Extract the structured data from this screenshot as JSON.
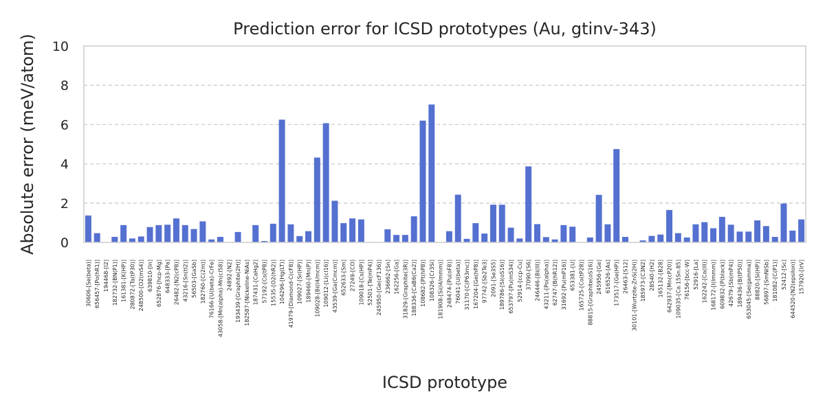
{
  "chart_data": {
    "type": "bar",
    "title": "Prediction error for ICSD prototypes (Au, gtinv-343)",
    "xlabel": "ICSD prototype",
    "ylabel": "Absolute error (meV/atom)",
    "ylim": [
      0,
      10
    ],
    "yticks": [
      0,
      2,
      4,
      6,
      8,
      10
    ],
    "grid": "y-dashed",
    "bar_color": "#5470d0",
    "categories": [
      "30606-[Se(beta)]",
      "656457-[Po(hR1)]",
      "194468-[I2]",
      "182732-[BN(P1)]",
      "161381-[K(HP)]",
      "280872-[Ta(tP30)]",
      "248500-[O2(mS4)]",
      "639810-[In]",
      "652876-[hcp-Mg]",
      "648333-[Pa]",
      "26482-[N2(cP8)]",
      "43216-[Sn(tI2)]",
      "56503-[GaSb]",
      "182760-[C(2m)]",
      "76166-[U(beta)-CrFe]",
      "43058-[Mn(alpha)-Mn(cI58)]",
      "24892-[N2]",
      "193439-[Graphite(2H)]",
      "182587-[Nickeline-NiAs]",
      "187431-[CaHg2]",
      "57192-[Cs(tP8)]",
      "15535-[O2(hR2)]",
      "104296-[Hg(LT)]",
      "41979-[Diamond-C(cF8)]",
      "109027-[Sr(HP)]",
      "189460-[Mn(P)]",
      "109028-[Bi(I4/mcm)]",
      "109012-[Li(cI16)]",
      "43539-[Ga(Cmcm)]",
      "652633-[Sm]",
      "27249-[CO]",
      "109018-[Cs(HP)]",
      "52501-[Te(mP4)]",
      "245950-[Ge(cF136)]",
      "236662-[Sn]",
      "162256-[Ga]",
      "31829-[Graphite(3R)]",
      "188336-[CaB6(Ca2)]",
      "108682-[Pt(hP8)]",
      "108326-[Cr3Si]",
      "181908-[Si(I4/mmm)]",
      "248474-[Pu(oF8)]",
      "76041-[U(beta)]",
      "31170-[C(P63mc)]",
      "167204-[Ge(hP8)]",
      "97742-[Sb2Te3]",
      "2091-[Se3S5]",
      "189786-[Si(oS16)]",
      "653797-[Pu(mS34)]",
      "52914-[ccp-Cu]",
      "37090-[S6]",
      "246446-[Bi(III)]",
      "43211-[Po(alpha)]",
      "62747-[B(hR12)]",
      "31692-[Pu(mP16)]",
      "653381-[U]",
      "165725-[Co(tP28)]",
      "88815-[Graphite(oS16)]",
      "245956-[Ge]",
      "616526-[As]",
      "173517-[Ge(HP)]",
      "26463-[S12]",
      "30101-[Wurtzite-ZnS(2H)]",
      "185973-[C3N2]",
      "28540-[H2]",
      "165132-[B28]",
      "642937-[Mn(cP20)]",
      "109035-[Ca.15Sn.85]",
      "76156-[bcc-W]",
      "52916-[La]",
      "162242-[Ca(III)]",
      "168172-[I(Immm)]",
      "609832-[P(black)]",
      "42679-[Sb(mP4)]",
      "189436-[B(tP50)]",
      "653045-[Se(gamma)]",
      "88820-[Si(HP)]",
      "56897-[SmNiSb]",
      "181082-[C(P1)]",
      "52412-[Sc]",
      "644520-[N2(epsilon)]",
      "157920-[IrV]"
    ],
    "values": [
      1.37,
      0.47,
      0.0,
      0.28,
      0.88,
      0.2,
      0.3,
      0.78,
      0.88,
      0.9,
      1.22,
      0.88,
      0.68,
      1.07,
      0.15,
      0.28,
      0.0,
      0.53,
      0.0,
      0.88,
      0.07,
      0.95,
      6.25,
      0.92,
      0.32,
      0.57,
      4.32,
      6.07,
      2.12,
      0.98,
      1.22,
      1.17,
      0.0,
      0.0,
      0.67,
      0.38,
      0.38,
      1.33,
      6.2,
      7.02,
      0.0,
      0.57,
      2.43,
      0.18,
      0.98,
      0.45,
      1.92,
      1.92,
      0.75,
      0.2,
      3.87,
      0.93,
      0.27,
      0.15,
      0.88,
      0.8,
      0.0,
      0.25,
      2.42,
      0.92,
      4.75,
      0.28,
      0.0,
      0.1,
      0.33,
      0.4,
      1.65,
      0.47,
      0.25,
      0.92,
      1.03,
      0.72,
      1.3,
      0.9,
      0.55,
      0.55,
      1.12,
      0.83,
      0.28,
      1.98,
      0.6,
      1.17
    ]
  }
}
